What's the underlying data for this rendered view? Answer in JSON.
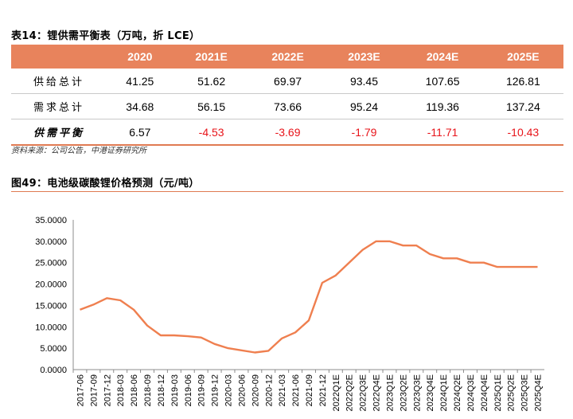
{
  "table": {
    "caption": "表14：锂供需平衡表（万吨，折 LCE）",
    "header_color": "#e8835c",
    "columns": [
      "",
      "2020",
      "2021E",
      "2022E",
      "2023E",
      "2024E",
      "2025E"
    ],
    "rows": [
      {
        "label": "供给总计",
        "values": [
          "41.25",
          "51.62",
          "69.97",
          "93.45",
          "107.65",
          "126.81"
        ]
      },
      {
        "label": "需求总计",
        "values": [
          "34.68",
          "56.15",
          "73.66",
          "95.24",
          "119.36",
          "137.24"
        ]
      },
      {
        "label": "供需平衡",
        "values": [
          "6.57",
          "-4.53",
          "-3.69",
          "-1.79",
          "-11.71",
          "-10.43"
        ]
      }
    ],
    "source": "资料来源：公司公告，中港证券研究所"
  },
  "figure": {
    "caption": "图49：电池级碳酸锂价格预测（元/吨）"
  },
  "chart_data": {
    "type": "line",
    "title": "",
    "xlabel": "",
    "ylabel": "",
    "ylim": [
      0,
      35
    ],
    "yticks": [
      "0.0000",
      "5.0000",
      "10.0000",
      "15.0000",
      "20.0000",
      "25.0000",
      "30.0000",
      "35.0000"
    ],
    "line_color": "#ef7f4f",
    "grid": false,
    "categories": [
      "2017-06",
      "2017-09",
      "2017-12",
      "2018-03",
      "2018-06",
      "2018-09",
      "2018-12",
      "2019-03",
      "2019-06",
      "2019-09",
      "2019-12",
      "2020-03",
      "2020-06",
      "2020-09",
      "2020-12",
      "2021-03",
      "2021-06",
      "2021-09",
      "2021-12",
      "2022Q1E",
      "2022Q2E",
      "2022Q3E",
      "2022Q4E",
      "2023Q1E",
      "2023Q2E",
      "2023Q3E",
      "2023Q4E",
      "2024Q1E",
      "2024Q2E",
      "2024Q3E",
      "2024Q4E",
      "2025Q1E",
      "2025Q2E",
      "2025Q3E",
      "2025Q4E"
    ],
    "series": [
      {
        "values": [
          14.0,
          15.2,
          16.7,
          16.2,
          14.0,
          10.3,
          8.0,
          8.0,
          7.8,
          7.5,
          6.0,
          5.0,
          4.5,
          4.0,
          4.4,
          7.3,
          8.7,
          11.5,
          20.3,
          22.0,
          25.0,
          28.0,
          30.0,
          30.0,
          29.0,
          29.0,
          27.0,
          26.0,
          26.0,
          25.0,
          25.0,
          24.0,
          24.0,
          24.0,
          24.0
        ]
      }
    ]
  }
}
